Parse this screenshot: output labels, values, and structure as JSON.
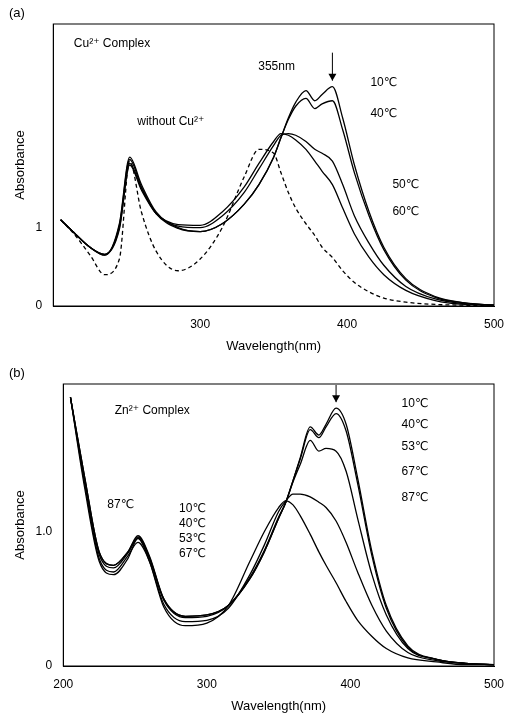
{
  "chart_data": [
    {
      "type": "line",
      "title": "(a)",
      "x_label": "Wavelength(nm)",
      "y_label": "Absorbance",
      "xlim": [
        200,
        500
      ],
      "xticks": [
        300,
        400,
        500
      ],
      "ylim": [
        0,
        3.6
      ],
      "yticks": [
        0,
        1
      ],
      "grid": false,
      "x": [
        205,
        215,
        225,
        235,
        245,
        252,
        260,
        270,
        285,
        300,
        315,
        330,
        340,
        350,
        355,
        360,
        365,
        372,
        378,
        383,
        390,
        397,
        405,
        415,
        425,
        440,
        460,
        480,
        500
      ],
      "series": [
        {
          "color": "#000000",
          "line_style": "solid",
          "values": [
            1.1,
            0.92,
            0.75,
            0.65,
            1.05,
            1.9,
            1.55,
            1.2,
            1.0,
            0.95,
            1.05,
            1.3,
            1.55,
            1.9,
            2.15,
            2.4,
            2.6,
            2.75,
            2.62,
            2.7,
            2.8,
            2.4,
            1.8,
            1.2,
            0.75,
            0.35,
            0.12,
            0.04,
            0.01
          ]
        },
        {
          "color": "#000000",
          "line_style": "solid",
          "values": [
            1.1,
            0.92,
            0.75,
            0.65,
            1.03,
            1.87,
            1.52,
            1.18,
            0.99,
            0.95,
            1.05,
            1.3,
            1.55,
            1.9,
            2.15,
            2.38,
            2.55,
            2.65,
            2.52,
            2.58,
            2.62,
            2.25,
            1.7,
            1.15,
            0.72,
            0.33,
            0.11,
            0.04,
            0.01
          ]
        },
        {
          "color": "#000000",
          "line_style": "solid",
          "values": [
            1.1,
            0.92,
            0.75,
            0.66,
            1.0,
            1.82,
            1.5,
            1.18,
            1.02,
            1.0,
            1.15,
            1.45,
            1.75,
            2.05,
            2.18,
            2.2,
            2.18,
            2.1,
            2.0,
            1.95,
            1.85,
            1.55,
            1.15,
            0.8,
            0.52,
            0.25,
            0.09,
            0.03,
            0.01
          ]
        },
        {
          "color": "#000000",
          "line_style": "solid",
          "values": [
            1.1,
            0.92,
            0.75,
            0.66,
            0.98,
            1.8,
            1.48,
            1.18,
            1.04,
            1.03,
            1.2,
            1.52,
            1.82,
            2.1,
            2.2,
            2.18,
            2.12,
            2.0,
            1.85,
            1.72,
            1.55,
            1.25,
            0.92,
            0.62,
            0.4,
            0.2,
            0.07,
            0.02,
            0.01
          ]
        },
        {
          "color": "#000000",
          "line_style": "dashed",
          "values": [
            1.1,
            0.9,
            0.65,
            0.4,
            0.6,
            1.85,
            1.2,
            0.7,
            0.45,
            0.6,
            1.0,
            1.65,
            2.0,
            1.95,
            1.7,
            1.45,
            1.25,
            1.05,
            0.9,
            0.75,
            0.62,
            0.45,
            0.3,
            0.18,
            0.1,
            0.05,
            0.02,
            0.01,
            0.0
          ]
        }
      ],
      "annotations": [
        {
          "text": "Cu²⁺ Complex",
          "x": 240,
          "y": 3.35
        },
        {
          "text": "without Cu²⁺",
          "x": 280,
          "y": 2.35
        },
        {
          "text": "355nm",
          "x": 352,
          "y": 3.05
        },
        {
          "text": "10℃",
          "x": 425,
          "y": 2.85
        },
        {
          "text": "40℃",
          "x": 425,
          "y": 2.45
        },
        {
          "text": "50℃",
          "x": 440,
          "y": 1.55
        },
        {
          "text": "60℃",
          "x": 440,
          "y": 1.2
        }
      ]
    },
    {
      "type": "line",
      "title": "(b)",
      "x_label": "Wavelength(nm)",
      "y_label": "Absorbance",
      "xlim": [
        200,
        500
      ],
      "xticks": [
        200,
        300,
        400,
        500
      ],
      "ylim": [
        0,
        2.1
      ],
      "yticks": [
        0,
        {
          "value": 1,
          "label": "1.0"
        }
      ],
      "grid": false,
      "x": [
        205,
        215,
        225,
        235,
        245,
        252,
        260,
        270,
        285,
        300,
        315,
        330,
        340,
        350,
        355,
        360,
        365,
        372,
        378,
        383,
        390,
        397,
        405,
        415,
        425,
        440,
        460,
        480,
        500
      ],
      "series": [
        {
          "color": "#000000",
          "line_style": "solid",
          "values": [
            2.0,
            1.4,
            0.85,
            0.75,
            0.85,
            0.97,
            0.82,
            0.5,
            0.37,
            0.38,
            0.45,
            0.65,
            0.85,
            1.1,
            1.22,
            1.38,
            1.55,
            1.78,
            1.72,
            1.8,
            1.92,
            1.8,
            1.4,
            0.85,
            0.45,
            0.15,
            0.05,
            0.02,
            0.01
          ]
        },
        {
          "color": "#000000",
          "line_style": "solid",
          "values": [
            2.0,
            1.4,
            0.85,
            0.75,
            0.85,
            0.96,
            0.81,
            0.5,
            0.37,
            0.38,
            0.45,
            0.65,
            0.85,
            1.1,
            1.22,
            1.38,
            1.54,
            1.76,
            1.7,
            1.78,
            1.88,
            1.75,
            1.36,
            0.82,
            0.43,
            0.14,
            0.05,
            0.02,
            0.01
          ]
        },
        {
          "color": "#000000",
          "line_style": "solid",
          "values": [
            2.0,
            1.38,
            0.83,
            0.73,
            0.84,
            0.95,
            0.8,
            0.49,
            0.36,
            0.37,
            0.45,
            0.66,
            0.86,
            1.11,
            1.22,
            1.37,
            1.5,
            1.68,
            1.6,
            1.62,
            1.6,
            1.45,
            1.1,
            0.68,
            0.38,
            0.13,
            0.05,
            0.02,
            0.01
          ]
        },
        {
          "color": "#000000",
          "line_style": "solid",
          "values": [
            2.0,
            1.35,
            0.8,
            0.7,
            0.82,
            0.92,
            0.78,
            0.46,
            0.33,
            0.34,
            0.43,
            0.68,
            0.9,
            1.15,
            1.23,
            1.28,
            1.28,
            1.26,
            1.22,
            1.18,
            1.08,
            0.92,
            0.7,
            0.45,
            0.26,
            0.1,
            0.04,
            0.02,
            0.01
          ]
        },
        {
          "color": "#000000",
          "line_style": "solid",
          "values": [
            2.0,
            1.32,
            0.78,
            0.68,
            0.8,
            0.95,
            0.78,
            0.44,
            0.3,
            0.32,
            0.45,
            0.78,
            1.0,
            1.18,
            1.23,
            1.2,
            1.12,
            0.98,
            0.85,
            0.75,
            0.62,
            0.48,
            0.34,
            0.22,
            0.13,
            0.06,
            0.03,
            0.01,
            0.01
          ]
        }
      ],
      "annotations": [
        {
          "text": "Zn²⁺ Complex",
          "x": 262,
          "y": 1.9
        },
        {
          "text": "87℃",
          "x": 240,
          "y": 1.2
        },
        {
          "text": "10℃",
          "x": 290,
          "y": 1.17
        },
        {
          "text": "40℃",
          "x": 290,
          "y": 1.06
        },
        {
          "text": "53℃",
          "x": 290,
          "y": 0.95
        },
        {
          "text": "67℃",
          "x": 290,
          "y": 0.84
        },
        {
          "text": "10℃",
          "x": 445,
          "y": 1.95
        },
        {
          "text": "40℃",
          "x": 445,
          "y": 1.8
        },
        {
          "text": "53℃",
          "x": 445,
          "y": 1.63
        },
        {
          "text": "67℃",
          "x": 445,
          "y": 1.45
        },
        {
          "text": "87℃",
          "x": 445,
          "y": 1.25
        }
      ]
    }
  ]
}
